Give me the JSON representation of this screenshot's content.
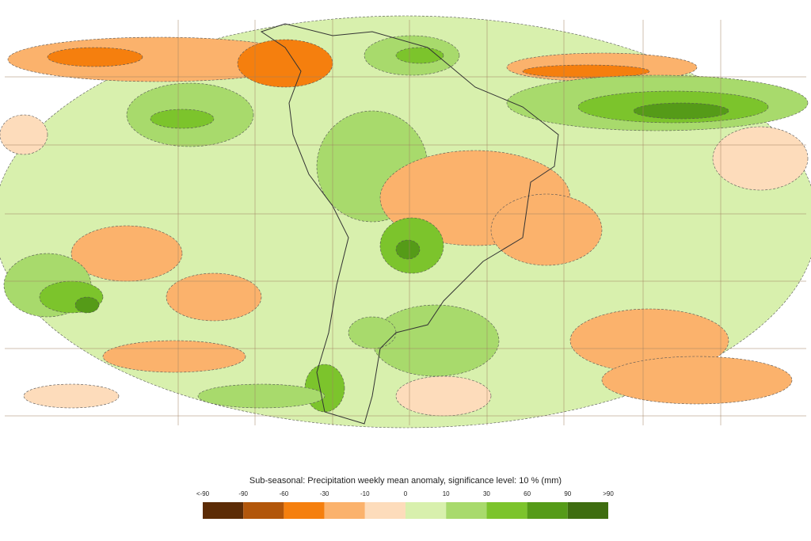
{
  "colorbar": {
    "title": "Sub-seasonal: Precipitation weekly mean anomaly, significance level: 10 % (mm)",
    "labels": [
      "<-90",
      "-90",
      "-60",
      "-30",
      "-10",
      "0",
      "10",
      "30",
      "60",
      "90",
      ">90"
    ],
    "colors": [
      "#5c2c06",
      "#b2560a",
      "#f57f0e",
      "#fbb26c",
      "#fddcbb",
      "#d8f0ad",
      "#a8da6c",
      "#7cc42c",
      "#559b18",
      "#3e6d10"
    ]
  }
}
